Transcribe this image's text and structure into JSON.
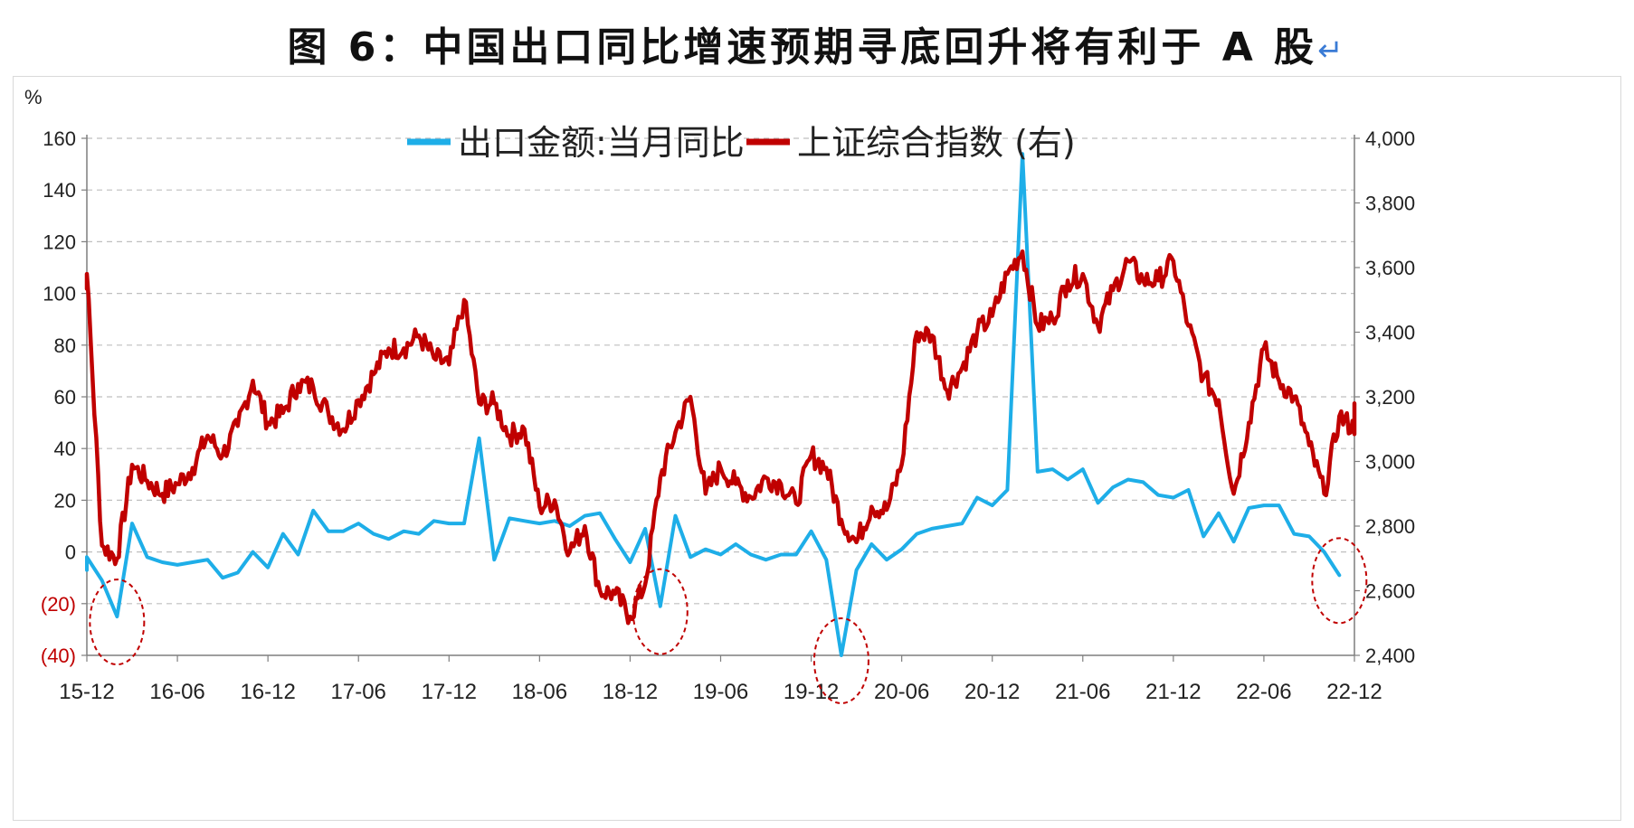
{
  "title": "图 6：中国出口同比增速预期寻底回升将有利于 A 股",
  "title_return_mark": "↵",
  "colors": {
    "export": "#1eaee8",
    "index": "#c00000",
    "grid": "#bfbfbf",
    "circle": "#c00000"
  },
  "chart_data": {
    "type": "line",
    "left_axis": {
      "unit": "%",
      "range": [
        -40,
        160
      ],
      "ticks": [
        {
          "value": 160,
          "label": "160"
        },
        {
          "value": 140,
          "label": "140"
        },
        {
          "value": 120,
          "label": "120"
        },
        {
          "value": 100,
          "label": "100"
        },
        {
          "value": 80,
          "label": "80"
        },
        {
          "value": 60,
          "label": "60"
        },
        {
          "value": 40,
          "label": "40"
        },
        {
          "value": 20,
          "label": "20"
        },
        {
          "value": 0,
          "label": "0"
        },
        {
          "value": -20,
          "label": "(20)"
        },
        {
          "value": -40,
          "label": "(40)"
        }
      ]
    },
    "right_axis": {
      "range": [
        2400,
        4000
      ],
      "ticks": [
        {
          "value": 4000,
          "label": "4,000"
        },
        {
          "value": 3800,
          "label": "3,800"
        },
        {
          "value": 3600,
          "label": "3,600"
        },
        {
          "value": 3400,
          "label": "3,400"
        },
        {
          "value": 3200,
          "label": "3,200"
        },
        {
          "value": 3000,
          "label": "3,000"
        },
        {
          "value": 2800,
          "label": "2,800"
        },
        {
          "value": 2600,
          "label": "2,600"
        },
        {
          "value": 2400,
          "label": "2,400"
        }
      ]
    },
    "x_axis": {
      "range": [
        "2015-12",
        "2022-12"
      ],
      "ticks": [
        {
          "date": "2015-12",
          "label": "15-12"
        },
        {
          "date": "2016-06",
          "label": "16-06"
        },
        {
          "date": "2016-12",
          "label": "16-12"
        },
        {
          "date": "2017-06",
          "label": "17-06"
        },
        {
          "date": "2017-12",
          "label": "17-12"
        },
        {
          "date": "2018-06",
          "label": "18-06"
        },
        {
          "date": "2018-12",
          "label": "18-12"
        },
        {
          "date": "2019-06",
          "label": "19-06"
        },
        {
          "date": "2019-12",
          "label": "19-12"
        },
        {
          "date": "2020-06",
          "label": "20-06"
        },
        {
          "date": "2020-12",
          "label": "20-12"
        },
        {
          "date": "2021-06",
          "label": "21-06"
        },
        {
          "date": "2021-12",
          "label": "21-12"
        },
        {
          "date": "2022-06",
          "label": "22-06"
        },
        {
          "date": "2022-12",
          "label": "22-12"
        }
      ]
    },
    "grid": "horizontal dashed",
    "legend_placement": "top-center",
    "series": [
      {
        "name": "出口金额:当月同比",
        "axis": "left",
        "points": [
          [
            "2015-11",
            -7
          ],
          [
            "2015-12",
            -2
          ],
          [
            "2016-01",
            -11
          ],
          [
            "2016-02",
            -25
          ],
          [
            "2016-03",
            11
          ],
          [
            "2016-04",
            -2
          ],
          [
            "2016-05",
            -4
          ],
          [
            "2016-06",
            -5
          ],
          [
            "2016-07",
            -4
          ],
          [
            "2016-08",
            -3
          ],
          [
            "2016-09",
            -10
          ],
          [
            "2016-10",
            -8
          ],
          [
            "2016-11",
            0
          ],
          [
            "2016-12",
            -6
          ],
          [
            "2017-01",
            7
          ],
          [
            "2017-02",
            -1
          ],
          [
            "2017-03",
            16
          ],
          [
            "2017-04",
            8
          ],
          [
            "2017-05",
            8
          ],
          [
            "2017-06",
            11
          ],
          [
            "2017-07",
            7
          ],
          [
            "2017-08",
            5
          ],
          [
            "2017-09",
            8
          ],
          [
            "2017-10",
            7
          ],
          [
            "2017-11",
            12
          ],
          [
            "2017-12",
            11
          ],
          [
            "2018-01",
            11
          ],
          [
            "2018-02",
            44
          ],
          [
            "2018-03",
            -3
          ],
          [
            "2018-04",
            13
          ],
          [
            "2018-05",
            12
          ],
          [
            "2018-06",
            11
          ],
          [
            "2018-07",
            12
          ],
          [
            "2018-08",
            10
          ],
          [
            "2018-09",
            14
          ],
          [
            "2018-10",
            15
          ],
          [
            "2018-11",
            5
          ],
          [
            "2018-12",
            -4
          ],
          [
            "2019-01",
            9
          ],
          [
            "2019-02",
            -21
          ],
          [
            "2019-03",
            14
          ],
          [
            "2019-04",
            -2
          ],
          [
            "2019-05",
            1
          ],
          [
            "2019-06",
            -1
          ],
          [
            "2019-07",
            3
          ],
          [
            "2019-08",
            -1
          ],
          [
            "2019-09",
            -3
          ],
          [
            "2019-10",
            -1
          ],
          [
            "2019-11",
            -1
          ],
          [
            "2019-12",
            8
          ],
          [
            "2020-01",
            -3
          ],
          [
            "2020-02",
            -40
          ],
          [
            "2020-03",
            -7
          ],
          [
            "2020-04",
            3
          ],
          [
            "2020-05",
            -3
          ],
          [
            "2020-06",
            1
          ],
          [
            "2020-07",
            7
          ],
          [
            "2020-08",
            9
          ],
          [
            "2020-09",
            10
          ],
          [
            "2020-10",
            11
          ],
          [
            "2020-11",
            21
          ],
          [
            "2020-12",
            18
          ],
          [
            "2021-01",
            24
          ],
          [
            "2021-02",
            154
          ],
          [
            "2021-03",
            31
          ],
          [
            "2021-04",
            32
          ],
          [
            "2021-05",
            28
          ],
          [
            "2021-06",
            32
          ],
          [
            "2021-07",
            19
          ],
          [
            "2021-08",
            25
          ],
          [
            "2021-09",
            28
          ],
          [
            "2021-10",
            27
          ],
          [
            "2021-11",
            22
          ],
          [
            "2021-12",
            21
          ],
          [
            "2022-01",
            24
          ],
          [
            "2022-02",
            6
          ],
          [
            "2022-03",
            15
          ],
          [
            "2022-04",
            4
          ],
          [
            "2022-05",
            17
          ],
          [
            "2022-06",
            18
          ],
          [
            "2022-07",
            18
          ],
          [
            "2022-08",
            7
          ],
          [
            "2022-09",
            6
          ],
          [
            "2022-10",
            0
          ],
          [
            "2022-11",
            -9
          ]
        ]
      },
      {
        "name": "上证综合指数 (右)",
        "axis": "right",
        "points": [
          [
            "2015-11",
            3550
          ],
          [
            "2015-12",
            3580
          ],
          [
            "2016-01",
            2740
          ],
          [
            "2016-02",
            2700
          ],
          [
            "2016-03",
            2990
          ],
          [
            "2016-04",
            2940
          ],
          [
            "2016-05",
            2900
          ],
          [
            "2016-06",
            2930
          ],
          [
            "2016-07",
            2980
          ],
          [
            "2016-08",
            3080
          ],
          [
            "2016-09",
            3020
          ],
          [
            "2016-10",
            3110
          ],
          [
            "2016-11",
            3250
          ],
          [
            "2016-12",
            3120
          ],
          [
            "2017-01",
            3150
          ],
          [
            "2017-02",
            3240
          ],
          [
            "2017-03",
            3230
          ],
          [
            "2017-04",
            3150
          ],
          [
            "2017-05",
            3100
          ],
          [
            "2017-06",
            3190
          ],
          [
            "2017-07",
            3270
          ],
          [
            "2017-08",
            3350
          ],
          [
            "2017-09",
            3350
          ],
          [
            "2017-10",
            3390
          ],
          [
            "2017-11",
            3320
          ],
          [
            "2017-12",
            3300
          ],
          [
            "2018-01",
            3500
          ],
          [
            "2018-02",
            3180
          ],
          [
            "2018-03",
            3180
          ],
          [
            "2018-04",
            3080
          ],
          [
            "2018-05",
            3100
          ],
          [
            "2018-06",
            2860
          ],
          [
            "2018-07",
            2880
          ],
          [
            "2018-08",
            2720
          ],
          [
            "2018-09",
            2800
          ],
          [
            "2018-10",
            2600
          ],
          [
            "2018-11",
            2590
          ],
          [
            "2018-12",
            2520
          ],
          [
            "2019-01",
            2620
          ],
          [
            "2019-02",
            2950
          ],
          [
            "2019-03",
            3090
          ],
          [
            "2019-04",
            3200
          ],
          [
            "2019-05",
            2900
          ],
          [
            "2019-06",
            2980
          ],
          [
            "2019-07",
            2930
          ],
          [
            "2019-08",
            2890
          ],
          [
            "2019-09",
            2950
          ],
          [
            "2019-10",
            2930
          ],
          [
            "2019-11",
            2870
          ],
          [
            "2019-12",
            3020
          ],
          [
            "2020-01",
            2980
          ],
          [
            "2020-02",
            2820
          ],
          [
            "2020-03",
            2750
          ],
          [
            "2020-04",
            2860
          ],
          [
            "2020-05",
            2850
          ],
          [
            "2020-06",
            2990
          ],
          [
            "2020-07",
            3400
          ],
          [
            "2020-08",
            3390
          ],
          [
            "2020-09",
            3220
          ],
          [
            "2020-10",
            3290
          ],
          [
            "2020-11",
            3400
          ],
          [
            "2020-12",
            3450
          ],
          [
            "2021-01",
            3580
          ],
          [
            "2021-02",
            3650
          ],
          [
            "2021-03",
            3420
          ],
          [
            "2021-04",
            3440
          ],
          [
            "2021-05",
            3560
          ],
          [
            "2021-06",
            3580
          ],
          [
            "2021-07",
            3420
          ],
          [
            "2021-08",
            3530
          ],
          [
            "2021-09",
            3620
          ],
          [
            "2021-10",
            3560
          ],
          [
            "2021-11",
            3560
          ],
          [
            "2021-12",
            3620
          ],
          [
            "2022-01",
            3420
          ],
          [
            "2022-02",
            3260
          ],
          [
            "2022-03",
            3190
          ],
          [
            "2022-04",
            2900
          ],
          [
            "2022-05",
            3120
          ],
          [
            "2022-06",
            3350
          ],
          [
            "2022-07",
            3250
          ],
          [
            "2022-08",
            3200
          ],
          [
            "2022-09",
            3050
          ],
          [
            "2022-10",
            2900
          ],
          [
            "2022-11",
            3140
          ],
          [
            "2022-12",
            3100
          ],
          [
            "2023-01",
            3180
          ]
        ]
      }
    ],
    "highlights": [
      {
        "date": "2016-02"
      },
      {
        "date": "2019-02"
      },
      {
        "date": "2020-02"
      },
      {
        "date": "2022-11"
      }
    ]
  }
}
